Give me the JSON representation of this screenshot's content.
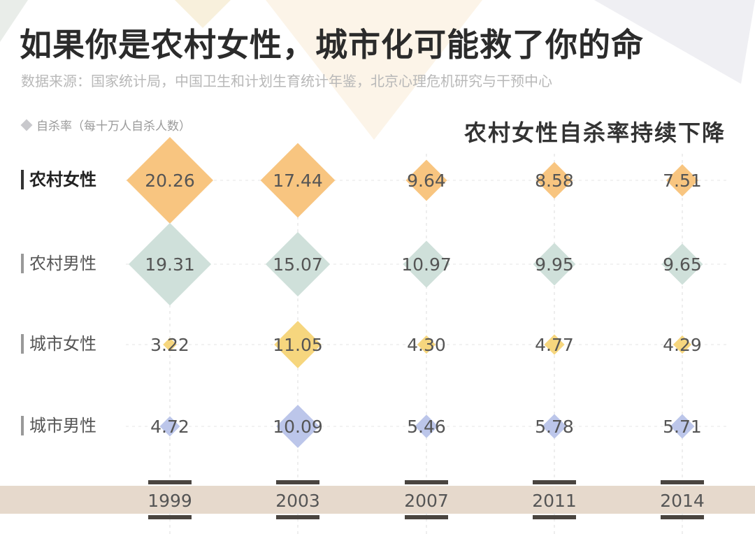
{
  "title": "如果你是农村女性，城市化可能救了你的命",
  "source": "数据来源：国家统计局，中国卫生和计划生育统计年鉴，北京心理危机研究与干预中心",
  "legend": "自杀率（每十万人自杀人数）",
  "subtitle": "农村女性自杀率持续下降",
  "chart_data": {
    "type": "bubble-grid",
    "title": "如果你是农村女性，城市化可能救了你的命",
    "subtitle": "农村女性自杀率持续下降",
    "categories": [
      "1999",
      "2003",
      "2007",
      "2011",
      "2014"
    ],
    "series": [
      {
        "name": "农村女性",
        "color": "#f8c580",
        "values": [
          20.26,
          17.44,
          9.64,
          8.58,
          7.51
        ]
      },
      {
        "name": "农村男性",
        "color": "#cfe0da",
        "values": [
          19.31,
          15.07,
          10.97,
          9.95,
          9.65
        ]
      },
      {
        "name": "城市女性",
        "color": "#f6d67e",
        "values": [
          3.22,
          11.05,
          4.3,
          4.77,
          4.29
        ]
      },
      {
        "name": "城市男性",
        "color": "#bcc6ea",
        "values": [
          4.72,
          10.09,
          5.46,
          5.78,
          5.71
        ]
      }
    ],
    "value_labels": [
      [
        "20.26",
        "17.44",
        "9.64",
        "8.58",
        "7.51"
      ],
      [
        "19.31",
        "15.07",
        "10.97",
        "9.95",
        "9.65"
      ],
      [
        "3.22",
        "11.05",
        "4.30",
        "4.77",
        "4.29"
      ],
      [
        "4.72",
        "10.09",
        "5.46",
        "5.78",
        "5.71"
      ]
    ],
    "grid": true
  }
}
